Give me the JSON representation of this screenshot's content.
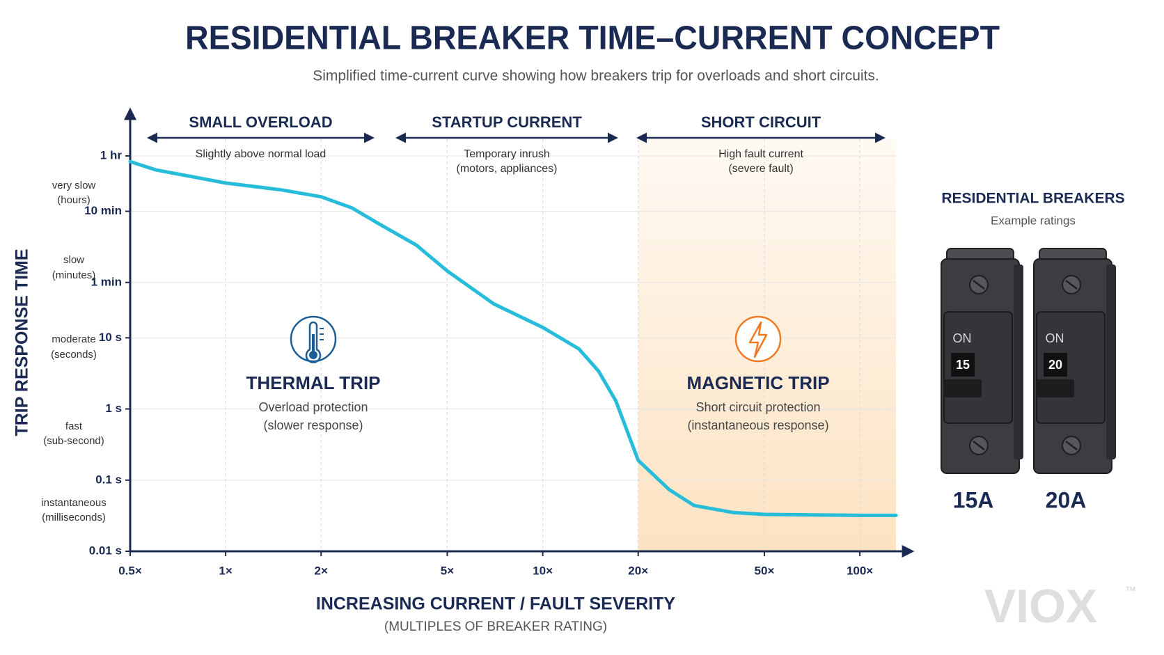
{
  "chart_data": {
    "type": "line",
    "title": "RESIDENTIAL BREAKER TIME–CURRENT CONCEPT",
    "subtitle": "Simplified time-current curve showing how breakers trip for overloads and short circuits.",
    "y_label": "TRIP RESPONSE TIME",
    "x_label": "INCREASING CURRENT / FAULT SEVERITY",
    "x_sublabel": "(MULTIPLES OF BREAKER RATING)",
    "log_x": true,
    "log_y": true,
    "grid": true,
    "xlim": [
      0.5,
      130
    ],
    "ylim": [
      0.01,
      3600
    ],
    "xticks": [
      {
        "value": 0.5,
        "label": "0.5×"
      },
      {
        "value": 1,
        "label": "1×"
      },
      {
        "value": 2,
        "label": "2×"
      },
      {
        "value": 5,
        "label": "5×"
      },
      {
        "value": 10,
        "label": "10×"
      },
      {
        "value": 20,
        "label": "20×"
      },
      {
        "value": 50,
        "label": "50×"
      },
      {
        "value": 100,
        "label": "100×"
      }
    ],
    "yticks": [
      {
        "value": 3600,
        "label": "1 hr"
      },
      {
        "value": 600,
        "label": "10 min"
      },
      {
        "value": 60,
        "label": "1 min"
      },
      {
        "value": 10,
        "label": "10 s"
      },
      {
        "value": 1,
        "label": "1 s"
      },
      {
        "value": 0.1,
        "label": "0.1 s"
      },
      {
        "value": 0.01,
        "label": "0.01 s"
      }
    ],
    "x": [
      0.5,
      0.6,
      1,
      1.5,
      2,
      2.5,
      3,
      4,
      5,
      7,
      10,
      13,
      15,
      17,
      20,
      25,
      30,
      40,
      50,
      100,
      130
    ],
    "series": [
      {
        "color": "#27bcd9",
        "values": [
          3000,
          2300,
          1500,
          1200,
          960,
          670,
          415,
          200,
          87,
          30,
          14,
          7,
          3.4,
          1.3,
          0.19,
          0.074,
          0.044,
          0.035,
          0.033,
          0.032,
          0.032
        ]
      }
    ],
    "shade": {
      "from": 20,
      "color": "#fcd9ad"
    },
    "regions": [
      {
        "title": "SMALL OVERLOAD",
        "notes": [
          "Slightly above normal load"
        ]
      },
      {
        "title": "STARTUP CURRENT",
        "notes": [
          "Temporary inrush",
          "(motors, appliances)"
        ]
      },
      {
        "title": "SHORT CIRCUIT",
        "notes": [
          "High fault current",
          "(severe fault)"
        ]
      }
    ],
    "speed_labels": [
      [
        "very slow",
        "(hours)"
      ],
      [
        "slow",
        "(minutes)"
      ],
      [
        "moderate",
        "(seconds)"
      ],
      [
        "fast",
        "(sub-second)"
      ],
      [
        "instantaneous",
        "(milliseconds)"
      ]
    ],
    "annotations": [
      {
        "title": "THERMAL TRIP",
        "lines": [
          "Overload protection",
          "(slower response)"
        ],
        "color": "#1b5e95"
      },
      {
        "title": "MAGNETIC TRIP",
        "lines": [
          "Short circuit protection",
          "(instantaneous response)"
        ],
        "color": "#f07a23"
      }
    ]
  },
  "breakers": {
    "title": "RESIDENTIAL BREAKERS",
    "subtitle": "Example ratings",
    "items": [
      {
        "switch": "ON",
        "rating": "15",
        "label": "15A"
      },
      {
        "switch": "ON",
        "rating": "20",
        "label": "20A"
      }
    ]
  },
  "brand": {
    "name": "VIOX",
    "mark": "™"
  }
}
